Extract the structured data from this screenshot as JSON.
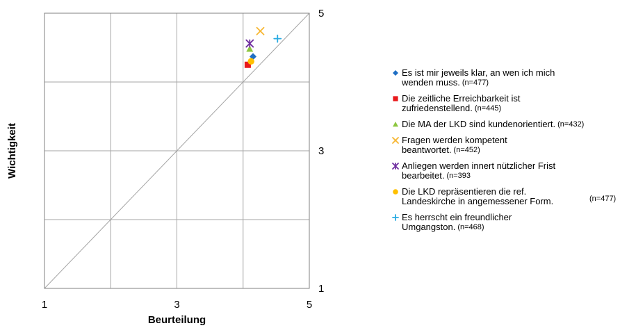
{
  "chart_data": {
    "type": "scatter",
    "title": "",
    "xlabel": "Beurteilung",
    "ylabel": "Wichtigkeit",
    "xlim": [
      1,
      5
    ],
    "ylim": [
      1,
      5
    ],
    "x_ticks": [
      1,
      3,
      5
    ],
    "y_ticks": [
      1,
      3,
      5
    ],
    "grid": true,
    "diagonal": true,
    "legend_position": "right",
    "series": [
      {
        "name": "Es ist mir jeweils klar, an wen ich mich wenden muss.",
        "lines": [
          "Es ist mir jeweils klar, an wen ich mich",
          "wenden muss."
        ],
        "n_label": "(n=477)",
        "x": 4.15,
        "y": 4.37,
        "marker": "diamond",
        "color": "#1f6fc4"
      },
      {
        "name": "Die zeitliche Erreichbarkeit ist zufriedenstellend.",
        "lines": [
          "Die zeitliche Erreichbarkeit ist",
          "zufriedenstellend."
        ],
        "n_label": "(n=445)",
        "x": 4.07,
        "y": 4.25,
        "marker": "square",
        "color": "#e8191c"
      },
      {
        "name": "Die MA der LKD sind kundenorientiert.",
        "lines": [
          "Die MA der LKD sind kundenorientiert."
        ],
        "n_label": "(n=432)",
        "x": 4.1,
        "y": 4.48,
        "marker": "triangle",
        "color": "#8cc63f"
      },
      {
        "name": "Fragen werden kompetent beantwortet.",
        "lines": [
          "Fragen werden kompetent",
          "beantwortet."
        ],
        "n_label": "(n=452)",
        "x": 4.26,
        "y": 4.74,
        "marker": "x",
        "color": "#f7b733"
      },
      {
        "name": "Anliegen werden innert nützlicher Frist bearbeitet.",
        "lines": [
          "Anliegen werden innert nützlicher Frist",
          "bearbeitet."
        ],
        "n_label": "(n=393",
        "x": 4.1,
        "y": 4.56,
        "marker": "star",
        "color": "#7030a0"
      },
      {
        "name": "Die LKD repräsentieren die ref. Landeskirche in angemessener Form.",
        "lines": [
          "Die LKD repräsentieren die ref.",
          "Landeskirche in angemessener Form."
        ],
        "n_label": "(n=477)",
        "x": 4.12,
        "y": 4.3,
        "marker": "circle",
        "color": "#ffc000"
      },
      {
        "name": "Es herrscht ein freundlicher Umgangston.",
        "lines": [
          "Es herrscht ein freundlicher",
          "Umgangston."
        ],
        "n_label": "(n=468)",
        "x": 4.52,
        "y": 4.63,
        "marker": "plus",
        "color": "#29abe2"
      }
    ]
  }
}
